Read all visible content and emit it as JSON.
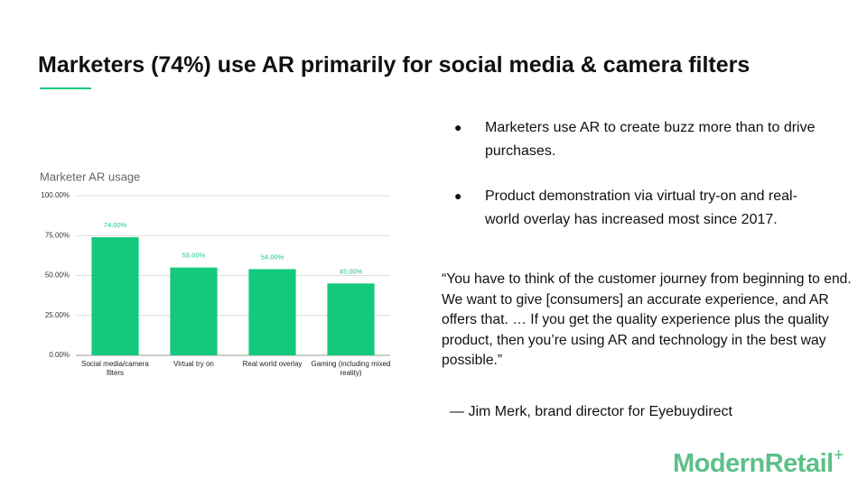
{
  "title": "Marketers (74%) use AR primarily for social media & camera filters",
  "chart_data": {
    "type": "bar",
    "title": "Marketer AR usage",
    "categories": [
      "Social media/camera filters",
      "Virtual try on",
      "Real world overlay",
      "Gaming (including mixed reality)"
    ],
    "values": [
      74,
      55,
      54,
      45
    ],
    "value_labels": [
      "74.00%",
      "55.00%",
      "54.00%",
      "45.00%"
    ],
    "color": "#14c97c",
    "ylim": [
      0,
      100
    ],
    "yticks": [
      {
        "value": 0,
        "label": "0.00%"
      },
      {
        "value": 25,
        "label": "25.00%"
      },
      {
        "value": 50,
        "label": "50.00%"
      },
      {
        "value": 75,
        "label": "75.00%"
      },
      {
        "value": 100,
        "label": "100.00%"
      }
    ],
    "grid": true
  },
  "bullets": [
    "Marketers use AR to create buzz more than to drive purchases.",
    "Product demonstration via virtual try-on and real-world overlay has increased most since 2017."
  ],
  "quote": "“You have to think of the customer journey from beginning to end. We want to give [consumers] an accurate experience, and AR offers that. … If you get the quality experience plus the quality product, then you’re using AR and technology in the best way possible.”",
  "attribution": "— Jim Merk, brand director for Eyebuydirect",
  "logo": {
    "text": "ModernRetail",
    "mark": "+"
  }
}
